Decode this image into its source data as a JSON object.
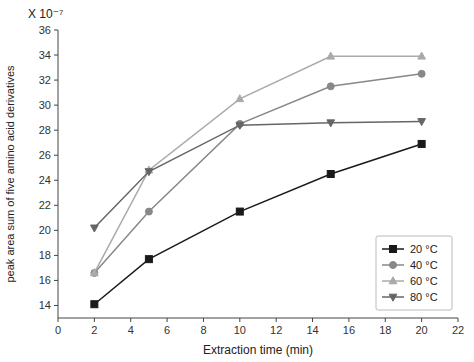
{
  "chart_data": {
    "type": "line",
    "xlabel": "Extraction time (min)",
    "ylabel": "peak area sum of five amino acid derivatives",
    "annotations": [
      "X 10⁻⁷"
    ],
    "x": [
      2,
      5,
      10,
      15,
      20
    ],
    "series": [
      {
        "name": "20 °C",
        "color": "#1a1a1a",
        "marker": "square",
        "line_style": "solid",
        "values": [
          14.1,
          17.7,
          21.5,
          24.5,
          26.9
        ]
      },
      {
        "name": "40 °C",
        "color": "#888888",
        "marker": "circle",
        "line_style": "solid",
        "values": [
          16.6,
          21.5,
          28.5,
          31.5,
          32.5
        ]
      },
      {
        "name": "60 °C",
        "color": "#aaaaaa",
        "marker": "triangle-up",
        "line_style": "solid",
        "values": [
          16.6,
          24.8,
          30.5,
          33.9,
          33.9
        ]
      },
      {
        "name": "80 °C",
        "color": "#666666",
        "marker": "triangle-down",
        "line_style": "solid",
        "values": [
          20.2,
          24.7,
          28.4,
          28.6,
          28.7
        ]
      }
    ],
    "xlim": [
      0,
      22
    ],
    "ylim": [
      13,
      36
    ],
    "xticks": [
      0,
      2,
      4,
      6,
      8,
      10,
      12,
      14,
      16,
      18,
      20,
      22
    ],
    "yticks": [
      14,
      16,
      18,
      20,
      22,
      24,
      26,
      28,
      30,
      32,
      34,
      36
    ],
    "grid": false,
    "legend": "lower right"
  }
}
